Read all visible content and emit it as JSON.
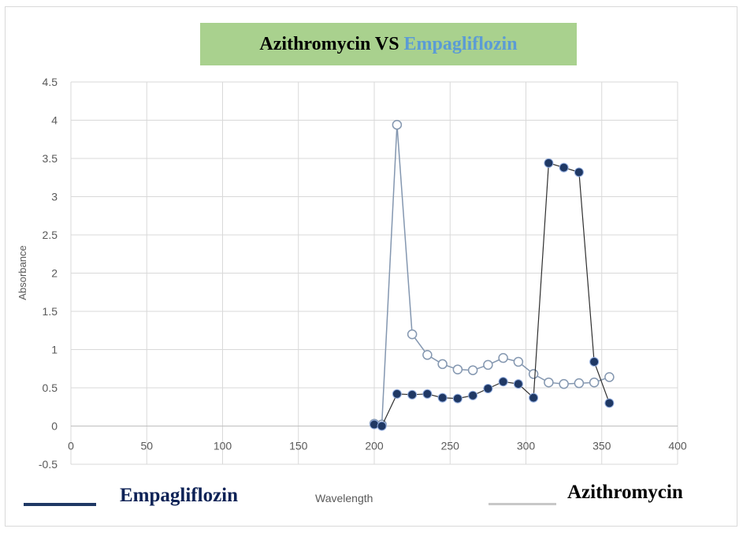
{
  "title": {
    "part1": "Azithromycin VS ",
    "part2": "Empagliflozin"
  },
  "chart_data": {
    "type": "scatter",
    "title": "Azithromycin VS Empagliflozin",
    "xlabel": "Wavelength",
    "ylabel": "Absorbance",
    "xlim": [
      0,
      400
    ],
    "ylim": [
      -0.5,
      4.5
    ],
    "x_ticks": [
      "0",
      "50",
      "100",
      "150",
      "200",
      "250",
      "300",
      "350",
      "400"
    ],
    "y_ticks": [
      "-0.5",
      "0",
      "0.5",
      "1",
      "1.5",
      "2",
      "2.5",
      "3",
      "3.5",
      "4",
      "4.5"
    ],
    "grid": true,
    "series": [
      {
        "name": "Empagliflozin",
        "color": "#1f3864",
        "marker": "filled-circle",
        "x": [
          200,
          205,
          215,
          225,
          235,
          245,
          255,
          265,
          275,
          285,
          295,
          305,
          315,
          325,
          335,
          345,
          355
        ],
        "y": [
          0.02,
          0.0,
          0.42,
          0.41,
          0.42,
          0.37,
          0.36,
          0.4,
          0.49,
          0.58,
          0.55,
          0.37,
          3.44,
          3.38,
          3.32,
          0.84,
          0.3
        ]
      },
      {
        "name": "Azithromycin",
        "color": "#8497b0",
        "marker": "hollow-circle",
        "x": [
          200,
          205,
          215,
          225,
          235,
          245,
          255,
          265,
          275,
          285,
          295,
          305,
          315,
          325,
          335,
          345,
          355
        ],
        "y": [
          0.03,
          0.02,
          3.94,
          1.2,
          0.93,
          0.81,
          0.74,
          0.73,
          0.8,
          0.89,
          0.84,
          0.68,
          0.57,
          0.55,
          0.56,
          0.57,
          0.64
        ]
      }
    ]
  },
  "legend": {
    "empagliflozin": {
      "label": "Empagliflozin",
      "color": "#0d2256"
    },
    "azithromycin": {
      "label": "Azithromycin",
      "color": "#000000"
    }
  }
}
